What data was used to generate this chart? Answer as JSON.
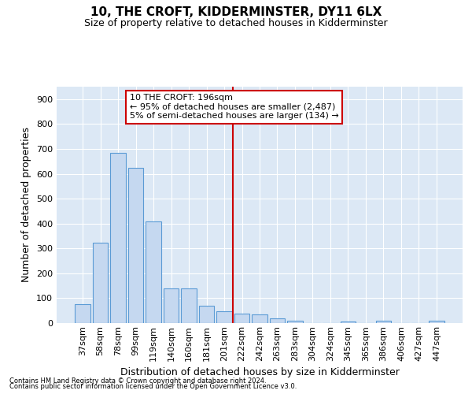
{
  "title": "10, THE CROFT, KIDDERMINSTER, DY11 6LX",
  "subtitle": "Size of property relative to detached houses in Kidderminster",
  "xlabel": "Distribution of detached houses by size in Kidderminster",
  "ylabel": "Number of detached properties",
  "categories": [
    "37sqm",
    "58sqm",
    "78sqm",
    "99sqm",
    "119sqm",
    "140sqm",
    "160sqm",
    "181sqm",
    "201sqm",
    "222sqm",
    "242sqm",
    "263sqm",
    "283sqm",
    "304sqm",
    "324sqm",
    "345sqm",
    "365sqm",
    "386sqm",
    "406sqm",
    "427sqm",
    "447sqm"
  ],
  "values": [
    75,
    322,
    685,
    625,
    410,
    138,
    138,
    70,
    47,
    37,
    35,
    20,
    10,
    0,
    0,
    5,
    0,
    8,
    0,
    0,
    8
  ],
  "bar_color": "#c5d8f0",
  "bar_edge_color": "#5b9bd5",
  "vline_color": "#cc0000",
  "annotation_text_line1": "10 THE CROFT: 196sqm",
  "annotation_text_line2": "← 95% of detached houses are smaller (2,487)",
  "annotation_text_line3": "5% of semi-detached houses are larger (134) →",
  "annotation_box_color": "#ffffff",
  "annotation_box_edge": "#cc0000",
  "ylim": [
    0,
    950
  ],
  "yticks": [
    0,
    100,
    200,
    300,
    400,
    500,
    600,
    700,
    800,
    900
  ],
  "background_color": "#dce8f5",
  "plot_bg_color": "#dce8f5",
  "footer1": "Contains HM Land Registry data © Crown copyright and database right 2024.",
  "footer2": "Contains public sector information licensed under the Open Government Licence v3.0.",
  "title_fontsize": 11,
  "subtitle_fontsize": 9,
  "xlabel_fontsize": 9,
  "ylabel_fontsize": 9,
  "tick_fontsize": 8,
  "footer_fontsize": 6,
  "annot_fontsize": 8
}
